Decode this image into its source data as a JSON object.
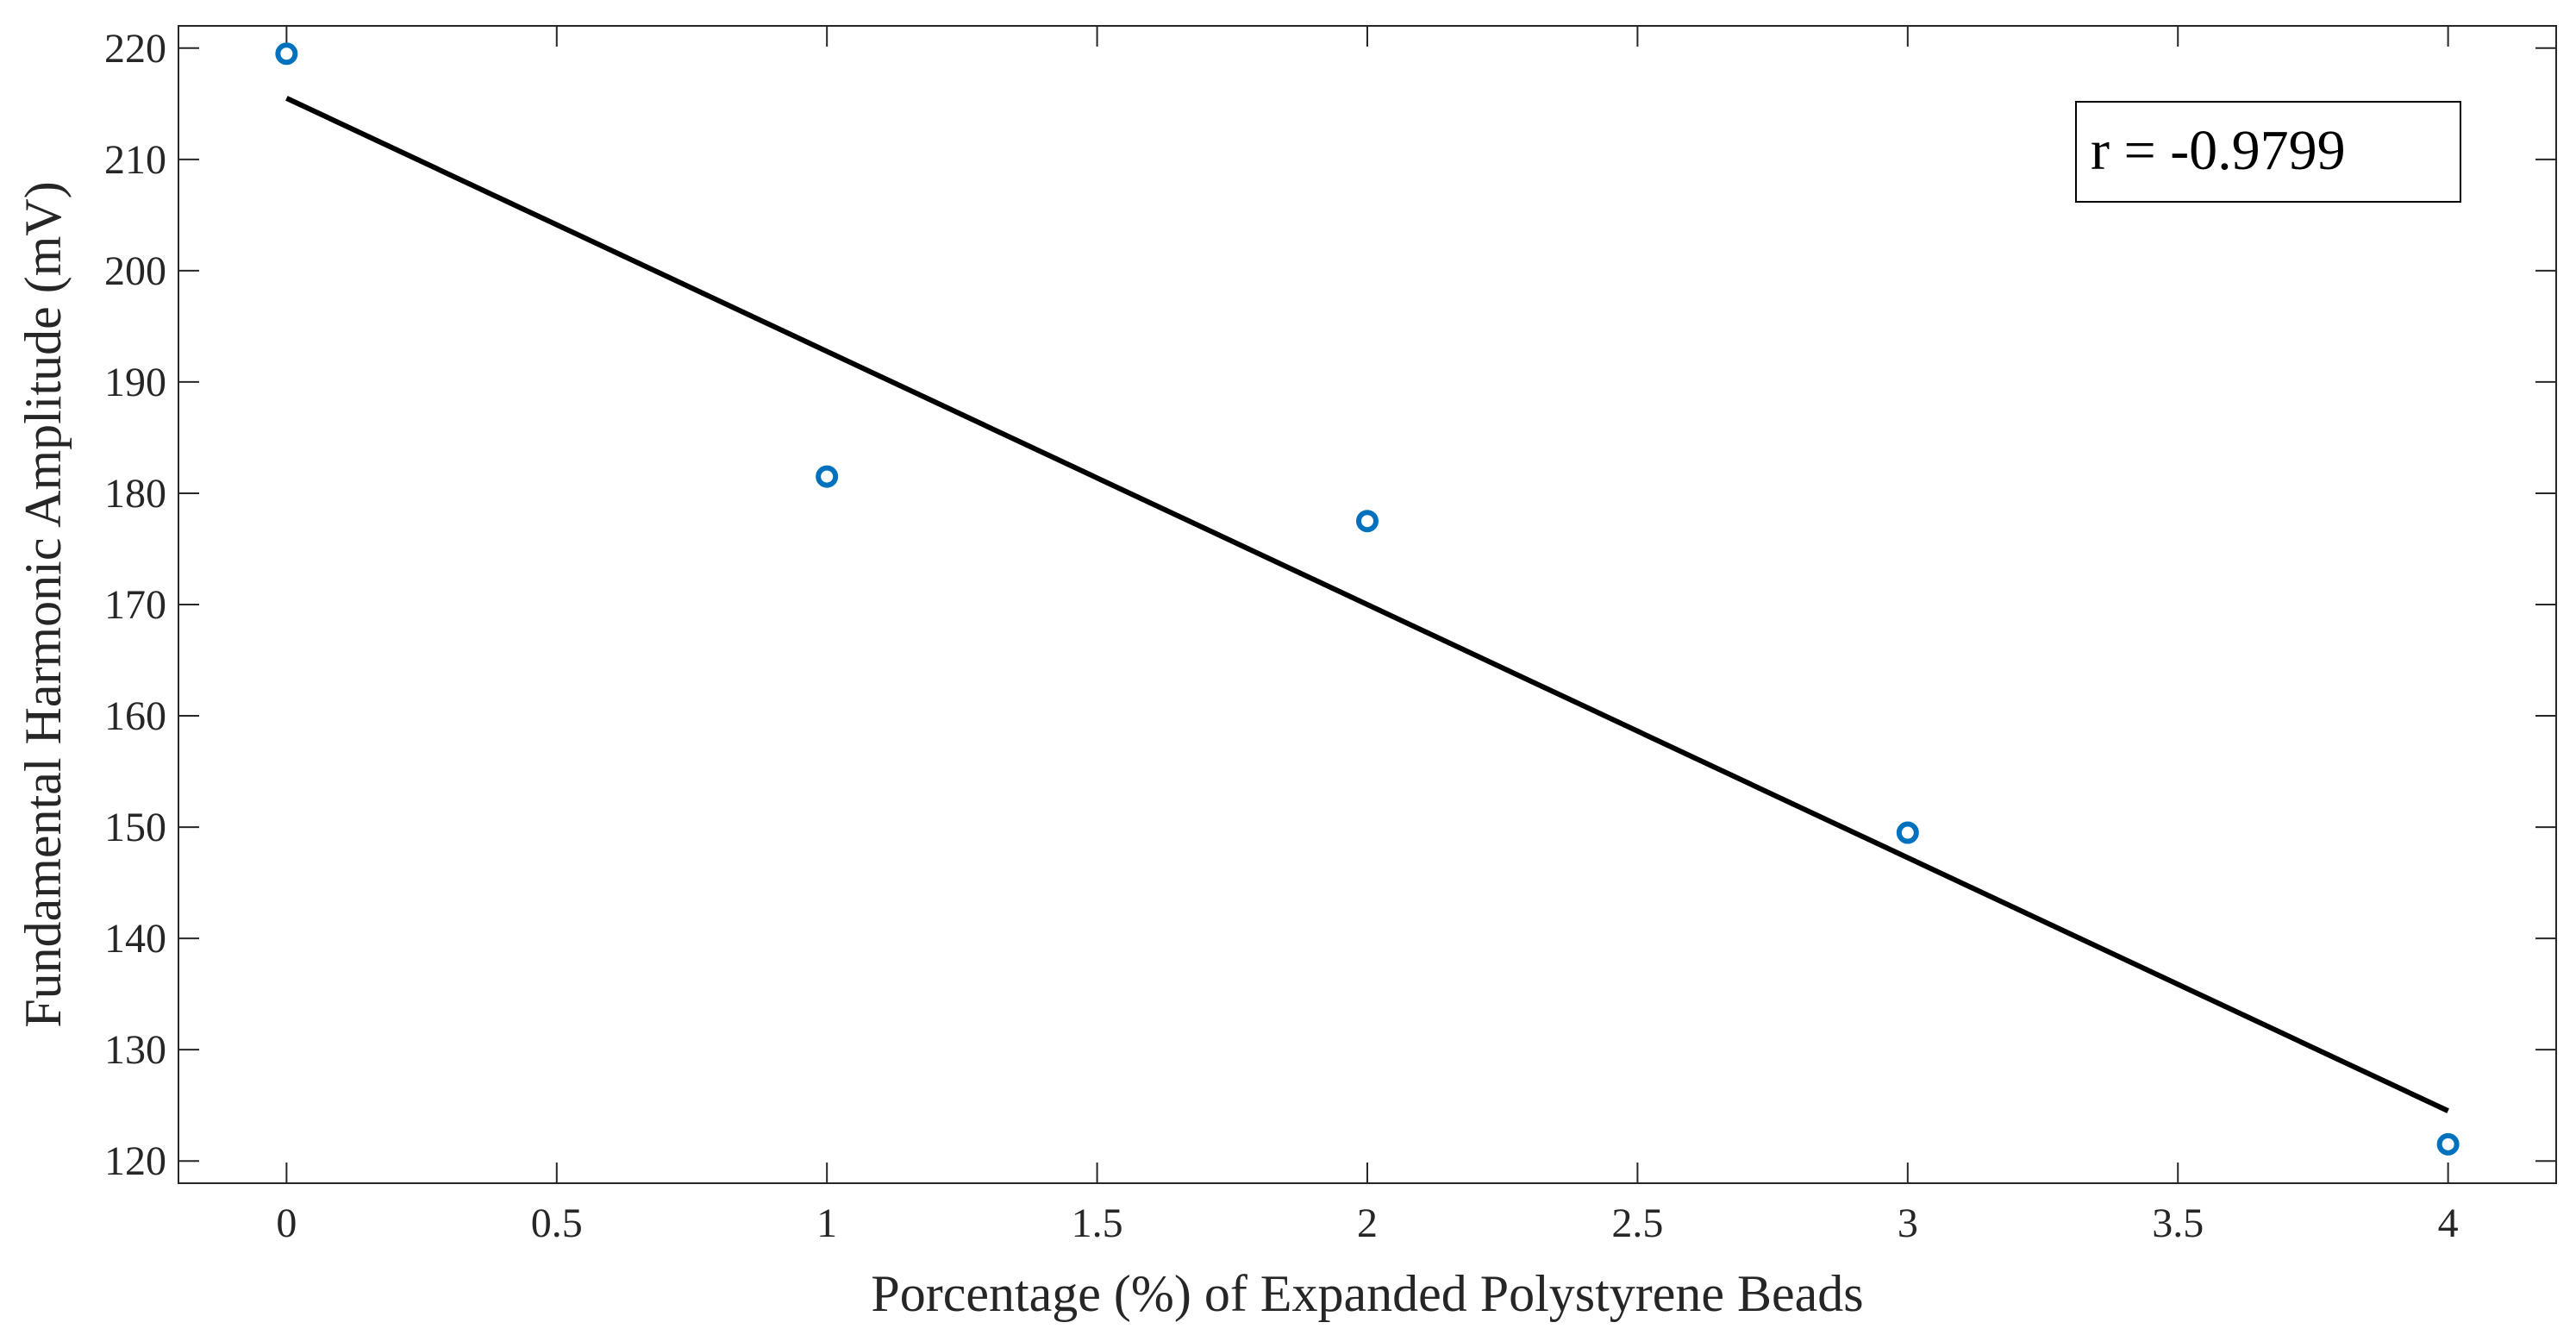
{
  "chart_data": {
    "type": "scatter",
    "xlabel": "Porcentage (%) of Expanded Polystyrene Beads",
    "ylabel": "Fundamental Harmonic Amplitude (mV)",
    "xlim": [
      -0.2,
      4.2
    ],
    "ylim": [
      118,
      222
    ],
    "xticks": [
      0,
      0.5,
      1,
      1.5,
      2,
      2.5,
      3,
      3.5,
      4
    ],
    "xtick_labels": [
      "0",
      "0.5",
      "1",
      "1.5",
      "2",
      "2.5",
      "3",
      "3.5",
      "4"
    ],
    "yticks": [
      120,
      130,
      140,
      150,
      160,
      170,
      180,
      190,
      200,
      210,
      220
    ],
    "ytick_labels": [
      "120",
      "130",
      "140",
      "150",
      "160",
      "170",
      "180",
      "190",
      "200",
      "210",
      "220"
    ],
    "grid": false,
    "series": [
      {
        "type": "scatter",
        "marker": "open-circle",
        "color": "#0072BD",
        "x": [
          0,
          1,
          2,
          3,
          4
        ],
        "y": [
          219.5,
          181.5,
          177.5,
          149.5,
          121.5
        ]
      },
      {
        "type": "line",
        "color": "#000000",
        "x": [
          0,
          4
        ],
        "y": [
          215.5,
          124.5
        ]
      }
    ],
    "annotation": {
      "text": "r = -0.9799",
      "placement": "top-right"
    }
  }
}
